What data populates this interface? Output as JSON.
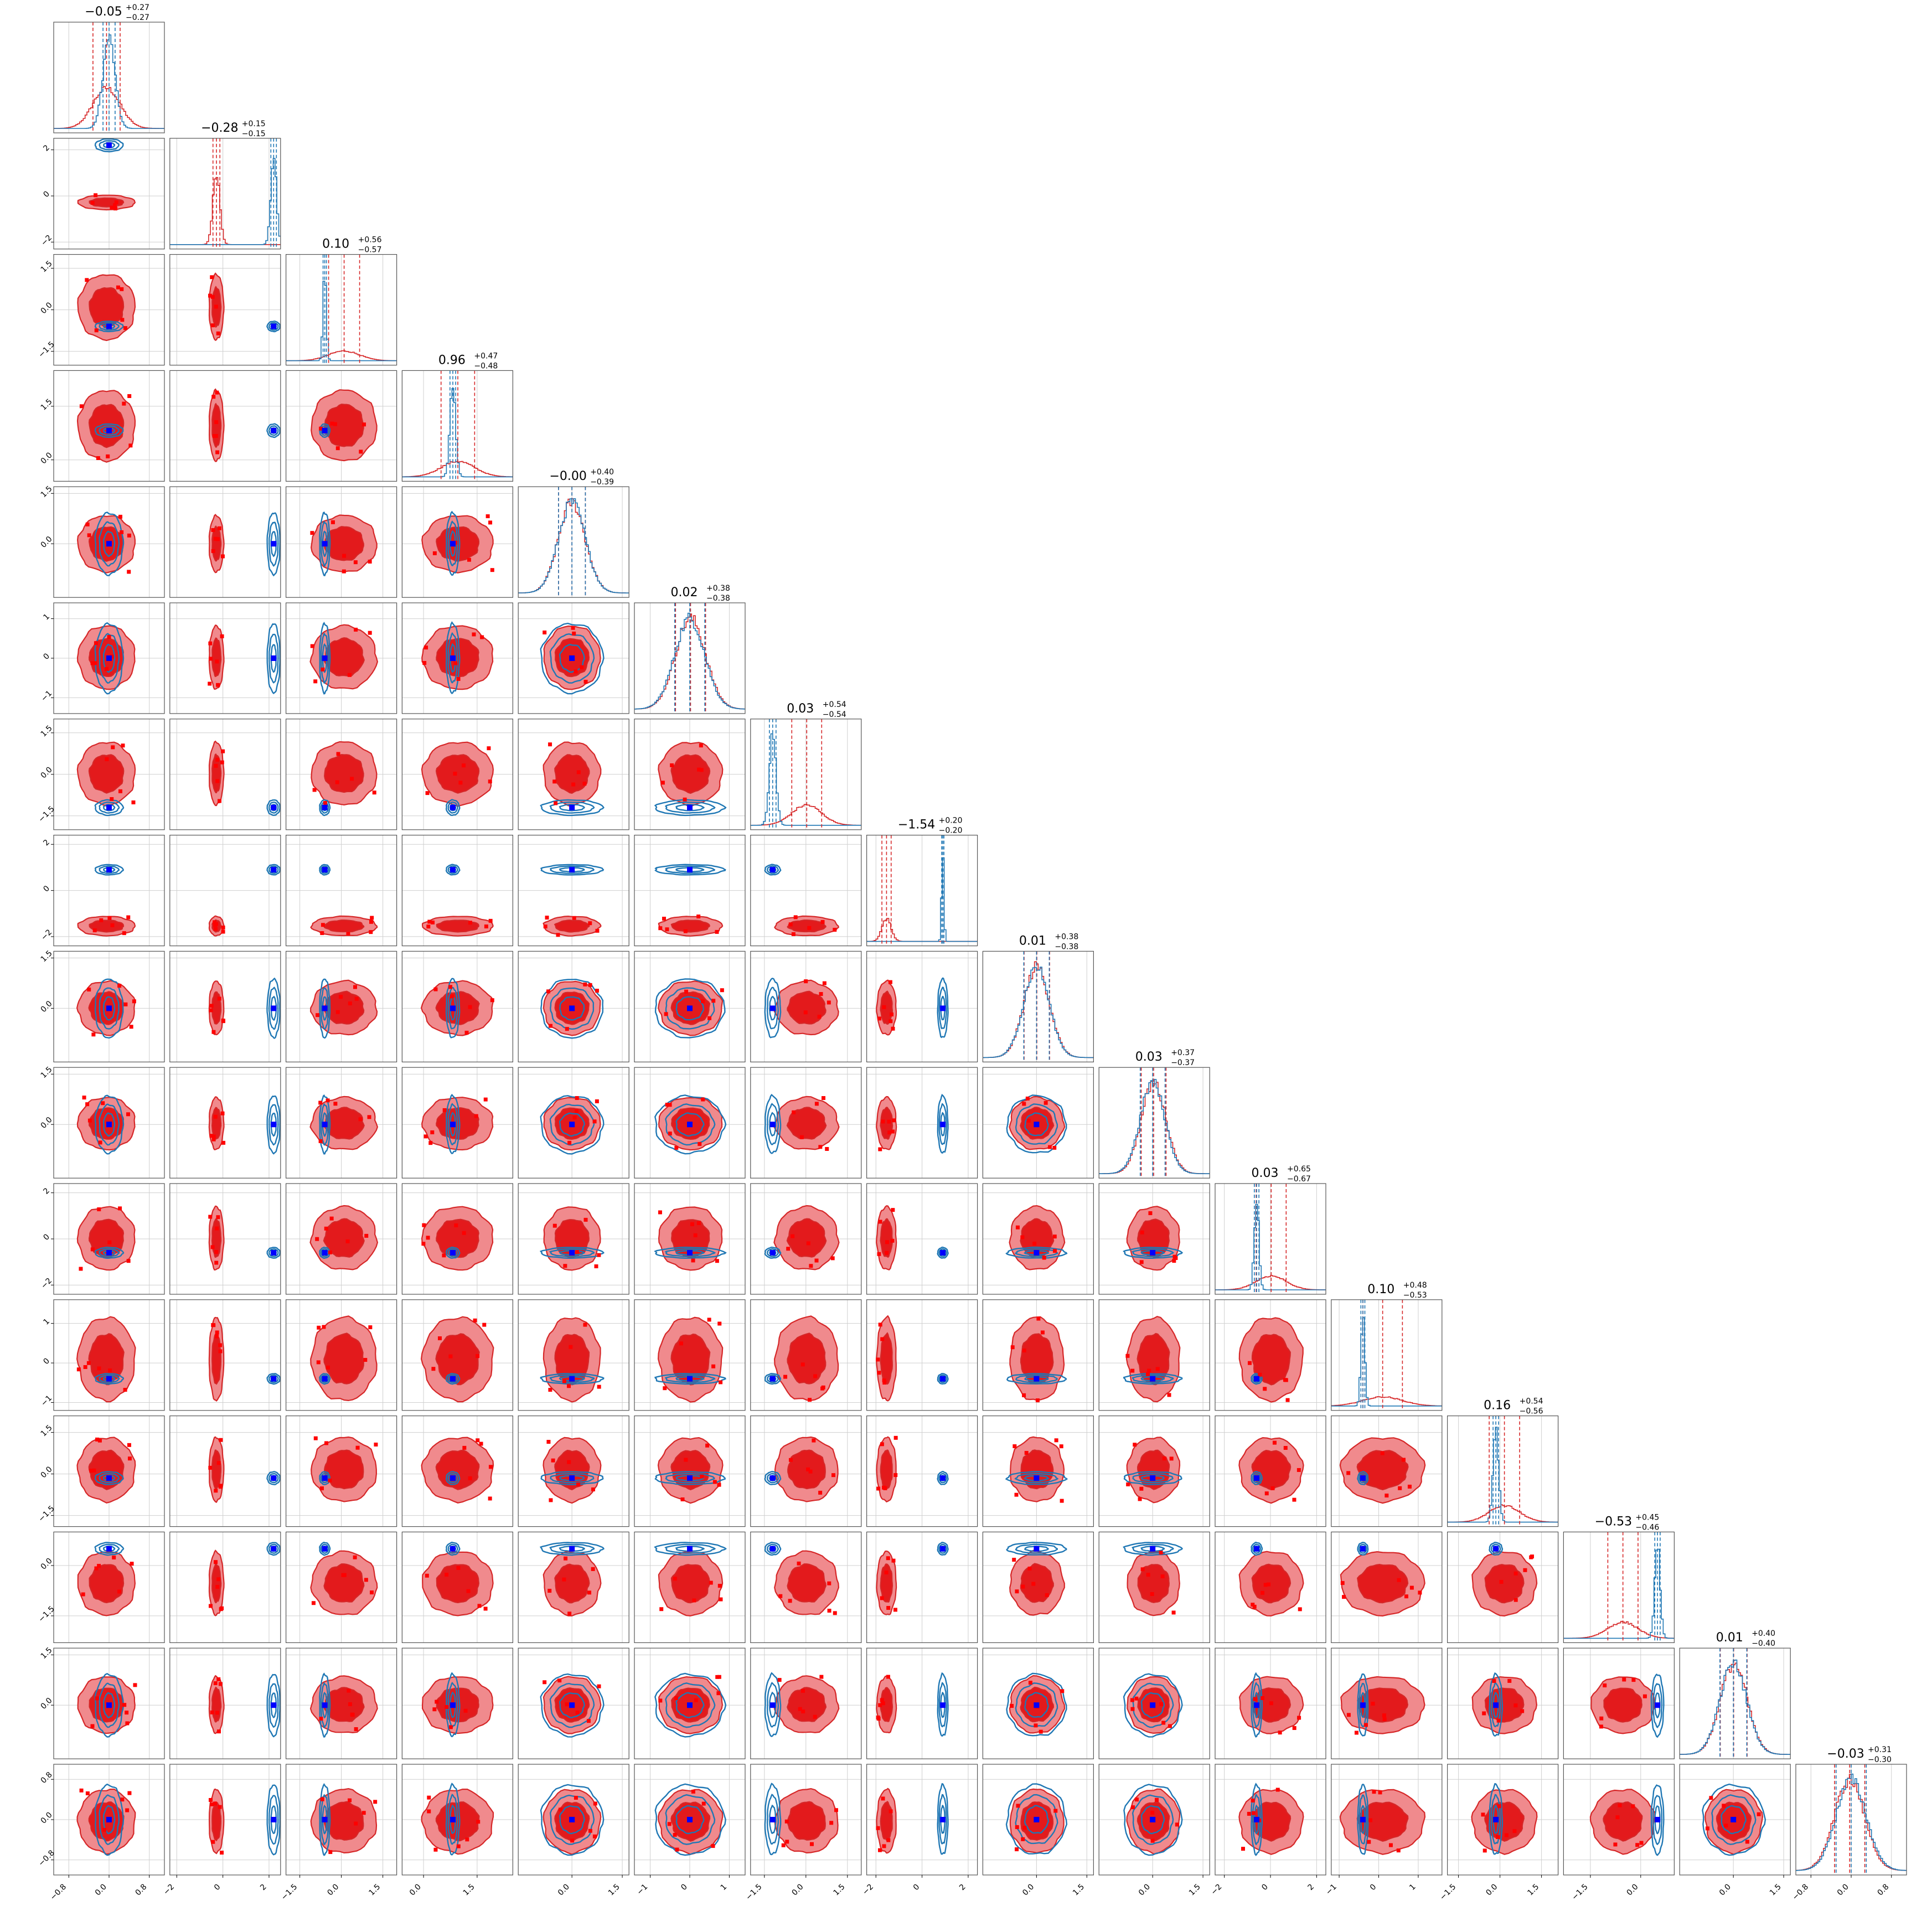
{
  "chart_data": {
    "type": "scatter",
    "subtype": "corner-plot",
    "n_params": 16,
    "grid": true,
    "colors": {
      "red_fill_outer": "#f08a8d",
      "red_fill_inner": "#e31a1c",
      "red_line": "#d62728",
      "blue_line": "#1f77b4",
      "truth_marker": "#0000ff",
      "point_marker": "#ff0000",
      "grid_color": "#cfcfcf"
    },
    "series": [
      {
        "color_key": "red",
        "style": "filled contours + histograms"
      },
      {
        "color_key": "blue",
        "style": "line contours + histograms"
      }
    ],
    "titles": [
      {
        "value": "−0.05",
        "plus": "+0.27",
        "minus": "−0.27"
      },
      {
        "value": "−0.28",
        "plus": "+0.15",
        "minus": "−0.15"
      },
      {
        "value": "0.10",
        "plus": "+0.56",
        "minus": "−0.57"
      },
      {
        "value": "0.96",
        "plus": "+0.47",
        "minus": "−0.48"
      },
      {
        "value": "−0.00",
        "plus": "+0.40",
        "minus": "−0.39"
      },
      {
        "value": "0.02",
        "plus": "+0.38",
        "minus": "−0.38"
      },
      {
        "value": "0.03",
        "plus": "+0.54",
        "minus": "−0.54"
      },
      {
        "value": "−1.54",
        "plus": "+0.20",
        "minus": "−0.20"
      },
      {
        "value": "0.01",
        "plus": "+0.38",
        "minus": "−0.38"
      },
      {
        "value": "0.03",
        "plus": "+0.37",
        "minus": "−0.37"
      },
      {
        "value": "0.03",
        "plus": "+0.65",
        "minus": "−0.67"
      },
      {
        "value": "0.10",
        "plus": "+0.48",
        "minus": "−0.53"
      },
      {
        "value": "0.16",
        "plus": "+0.54",
        "minus": "−0.56"
      },
      {
        "value": "−0.53",
        "plus": "+0.45",
        "minus": "−0.46"
      },
      {
        "value": "0.01",
        "plus": "+0.40",
        "minus": "−0.40"
      },
      {
        "value": "−0.03",
        "plus": "+0.31",
        "minus": "−0.30"
      }
    ],
    "params": [
      {
        "range": [
          -1.1,
          1.1
        ],
        "ticks": [
          -0.8,
          0.0,
          0.8
        ],
        "tick_labels": [
          "−0.8",
          "0.0",
          "0.8"
        ],
        "red_median": -0.05,
        "red_sigma": 0.27,
        "blue_median": 0.0,
        "blue_sigma": 0.12,
        "truth": 0.0
      },
      {
        "range": [
          -2.3,
          2.5
        ],
        "ticks": [
          -2,
          0,
          2
        ],
        "tick_labels": [
          "−2",
          "0",
          "2"
        ],
        "red_median": -0.28,
        "red_sigma": 0.15,
        "blue_median": 2.2,
        "blue_sigma": 0.12,
        "truth": 2.2
      },
      {
        "range": [
          -2.0,
          2.0
        ],
        "ticks": [
          -1.5,
          0.0,
          1.5
        ],
        "tick_labels": [
          "−1.5",
          "0.0",
          "1.5"
        ],
        "red_median": 0.1,
        "red_sigma": 0.56,
        "blue_median": -0.6,
        "blue_sigma": 0.06,
        "truth": -0.6
      },
      {
        "range": [
          -0.6,
          2.5
        ],
        "ticks": [
          0.0,
          1.5
        ],
        "tick_labels": [
          "0.0",
          "1.5"
        ],
        "red_median": 0.96,
        "red_sigma": 0.47,
        "blue_median": 0.82,
        "blue_sigma": 0.08,
        "truth": 0.82
      },
      {
        "range": [
          -1.6,
          1.7
        ],
        "ticks": [
          0.0,
          1.5
        ],
        "tick_labels": [
          "0.0",
          "1.5"
        ],
        "red_median": 0.0,
        "red_sigma": 0.4,
        "blue_median": 0.0,
        "blue_sigma": 0.4,
        "truth": 0.0
      },
      {
        "range": [
          -1.4,
          1.4
        ],
        "ticks": [
          -1,
          0,
          1
        ],
        "tick_labels": [
          "−1",
          "0",
          "1"
        ],
        "red_median": 0.02,
        "red_sigma": 0.38,
        "blue_median": 0.0,
        "blue_sigma": 0.38,
        "truth": 0.0
      },
      {
        "range": [
          -2.0,
          2.0
        ],
        "ticks": [
          -1.5,
          0.0,
          1.5
        ],
        "tick_labels": [
          "−1.5",
          "0.0",
          "1.5"
        ],
        "red_median": 0.03,
        "red_sigma": 0.54,
        "blue_median": -1.2,
        "blue_sigma": 0.12,
        "truth": -1.2
      },
      {
        "range": [
          -2.4,
          2.4
        ],
        "ticks": [
          -2,
          0,
          2
        ],
        "tick_labels": [
          "−2",
          "0",
          "2"
        ],
        "red_median": -1.54,
        "red_sigma": 0.2,
        "blue_median": 0.9,
        "blue_sigma": 0.05,
        "truth": 0.9
      },
      {
        "range": [
          -1.6,
          1.7
        ],
        "ticks": [
          0.0,
          1.5
        ],
        "tick_labels": [
          "0.0",
          "1.5"
        ],
        "red_median": 0.01,
        "red_sigma": 0.38,
        "blue_median": 0.0,
        "blue_sigma": 0.38,
        "truth": 0.0
      },
      {
        "range": [
          -1.6,
          1.7
        ],
        "ticks": [
          0.0,
          1.5
        ],
        "tick_labels": [
          "0.0",
          "1.5"
        ],
        "red_median": 0.03,
        "red_sigma": 0.37,
        "blue_median": 0.0,
        "blue_sigma": 0.37,
        "truth": 0.0
      },
      {
        "range": [
          -2.4,
          2.4
        ],
        "ticks": [
          -2,
          0,
          2
        ],
        "tick_labels": [
          "−2",
          "0",
          "2"
        ],
        "red_median": 0.03,
        "red_sigma": 0.65,
        "blue_median": -0.6,
        "blue_sigma": 0.1,
        "truth": -0.6
      },
      {
        "range": [
          -1.2,
          1.6
        ],
        "ticks": [
          -1,
          0,
          1
        ],
        "tick_labels": [
          "−1",
          "0",
          "1"
        ],
        "red_median": 0.1,
        "red_sigma": 0.5,
        "blue_median": -0.4,
        "blue_sigma": 0.05,
        "truth": -0.4
      },
      {
        "range": [
          -1.9,
          2.1
        ],
        "ticks": [
          -1.5,
          0.0,
          1.5
        ],
        "tick_labels": [
          "−1.5",
          "0.0",
          "1.5"
        ],
        "red_median": 0.16,
        "red_sigma": 0.55,
        "blue_median": -0.15,
        "blue_sigma": 0.1,
        "truth": -0.15
      },
      {
        "range": [
          -2.3,
          1.0
        ],
        "ticks": [
          -1.5,
          0.0
        ],
        "tick_labels": [
          "−1.5",
          "0.0"
        ],
        "red_median": -0.53,
        "red_sigma": 0.45,
        "blue_median": 0.5,
        "blue_sigma": 0.08,
        "truth": 0.5
      },
      {
        "range": [
          -1.6,
          1.7
        ],
        "ticks": [
          0.0,
          1.5
        ],
        "tick_labels": [
          "0.0",
          "1.5"
        ],
        "red_median": 0.01,
        "red_sigma": 0.4,
        "blue_median": 0.0,
        "blue_sigma": 0.4,
        "truth": 0.0
      },
      {
        "range": [
          -1.1,
          1.1
        ],
        "ticks": [
          -0.8,
          0.0,
          0.8
        ],
        "tick_labels": [
          "−0.8",
          "0.0",
          "0.8"
        ],
        "red_median": -0.03,
        "red_sigma": 0.3,
        "blue_median": 0.0,
        "blue_sigma": 0.3,
        "truth": 0.0
      }
    ]
  }
}
